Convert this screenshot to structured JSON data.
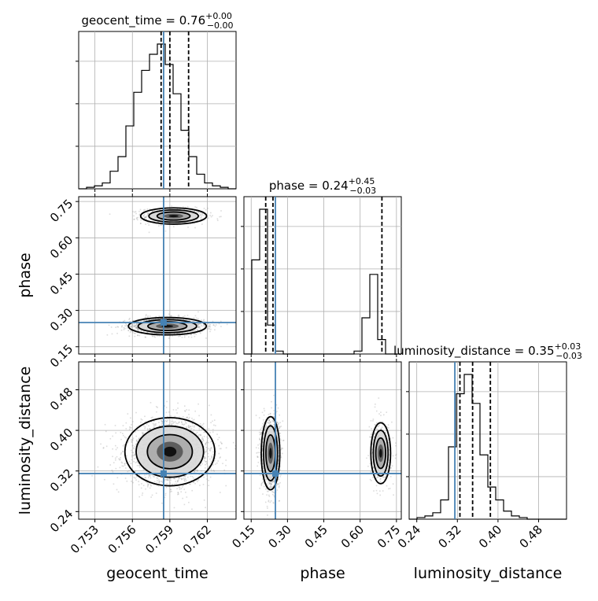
{
  "chart_data": {
    "type": "corner",
    "parameters": [
      {
        "name": "geocent_time",
        "axis_label": "geocent_time",
        "title_prefix": "geocent_time = 0.76",
        "title_sup": "+0.00",
        "title_sub": "−0.00",
        "range": [
          0.7517,
          0.7643
        ],
        "ticks": [
          0.753,
          0.756,
          0.759,
          0.762
        ],
        "tick_labels": [
          "0.753",
          "0.756",
          "0.759",
          "0.762"
        ],
        "median": 0.759,
        "quantiles": [
          0.7583,
          0.759,
          0.7605
        ],
        "truth": 0.7585,
        "hist_edges_start": 0.7517,
        "hist_bin_width": 0.00063,
        "hist_counts": [
          0,
          0.01,
          0.02,
          0.04,
          0.12,
          0.22,
          0.43,
          0.66,
          0.81,
          0.92,
          0.99,
          0.85,
          0.65,
          0.4,
          0.22,
          0.1,
          0.04,
          0.02,
          0.01,
          0
        ]
      },
      {
        "name": "phase",
        "axis_label": "phase",
        "title_prefix": "phase = 0.24",
        "title_sup": "+0.45",
        "title_sub": "−0.03",
        "range": [
          0.12,
          0.77
        ],
        "ticks": [
          0.15,
          0.3,
          0.45,
          0.6,
          0.75
        ],
        "tick_labels": [
          "0.15",
          "0.30",
          "0.45",
          "0.60",
          "0.75"
        ],
        "median": 0.24,
        "quantiles": [
          0.21,
          0.24,
          0.69
        ],
        "truth": 0.25,
        "hist_edges_start": 0.12,
        "hist_bin_width": 0.0325,
        "hist_counts": [
          0,
          0.65,
          1.0,
          0.2,
          0.02,
          0,
          0,
          0,
          0,
          0,
          0,
          0,
          0,
          0,
          0.02,
          0.25,
          0.55,
          0.1,
          0,
          0
        ]
      },
      {
        "name": "luminosity_distance",
        "axis_label": "luminosity_distance",
        "title_prefix": "luminosity_distance = 0.35",
        "title_sup": "+0.03",
        "title_sub": "−0.03",
        "range": [
          0.225,
          0.535
        ],
        "ticks": [
          0.24,
          0.32,
          0.4,
          0.48
        ],
        "tick_labels": [
          "0.24",
          "0.32",
          "0.40",
          "0.48"
        ],
        "median": 0.35,
        "quantiles": [
          0.325,
          0.35,
          0.385
        ],
        "truth": 0.315,
        "hist_edges_start": 0.225,
        "hist_bin_width": 0.0155,
        "hist_counts": [
          0,
          0.01,
          0.02,
          0.04,
          0.12,
          0.45,
          0.78,
          0.9,
          0.72,
          0.4,
          0.2,
          0.12,
          0.05,
          0.02,
          0.01,
          0,
          0,
          0,
          0,
          0
        ]
      }
    ],
    "truth_color": "#4682b4",
    "quantile_line_style": "dashed",
    "grid": true,
    "pairs": [
      {
        "x": "geocent_time",
        "y": "phase",
        "modes": [
          {
            "cx": 0.7593,
            "cy": 0.69,
            "sx": 0.0011,
            "sy": 0.014,
            "w": 0.35
          },
          {
            "cx": 0.7588,
            "cy": 0.235,
            "sx": 0.0013,
            "sy": 0.015,
            "w": 0.65
          }
        ]
      },
      {
        "x": "geocent_time",
        "y": "luminosity_distance",
        "modes": [
          {
            "cx": 0.759,
            "cy": 0.358,
            "sx": 0.0015,
            "sy": 0.028,
            "w": 1.0
          }
        ]
      },
      {
        "x": "phase",
        "y": "luminosity_distance",
        "modes": [
          {
            "cx": 0.23,
            "cy": 0.355,
            "sx": 0.016,
            "sy": 0.03,
            "w": 0.7
          },
          {
            "cx": 0.685,
            "cy": 0.355,
            "sx": 0.017,
            "sy": 0.025,
            "w": 0.3
          }
        ]
      }
    ]
  }
}
